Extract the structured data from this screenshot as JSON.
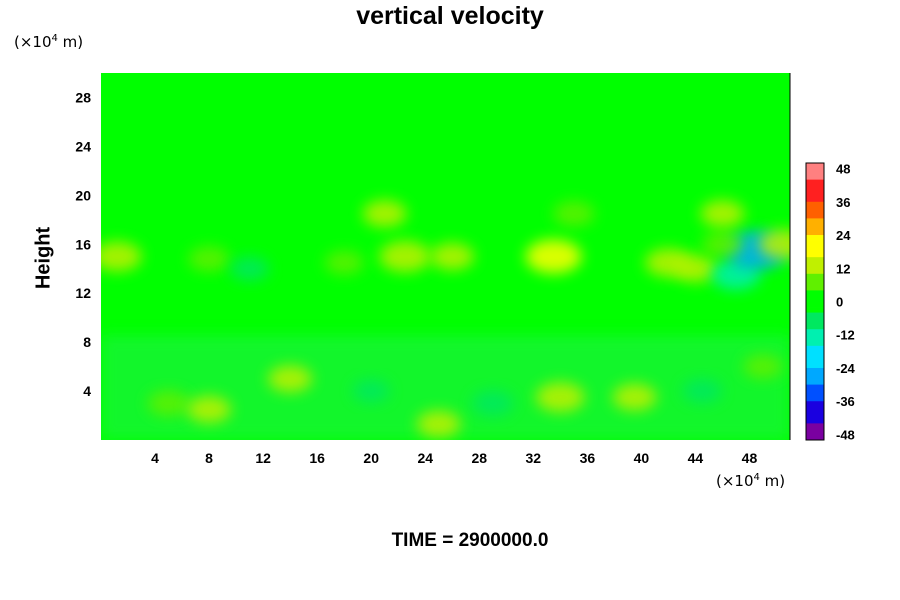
{
  "chart_data": {
    "type": "heatmap",
    "title": "vertical velocity",
    "ylabel": "Height",
    "xlabel": "",
    "y_unit": {
      "prefix": "(×10",
      "exp": "4",
      "suffix": " m)"
    },
    "x_unit": {
      "prefix": "(×10",
      "exp": "4",
      "suffix": " m)"
    },
    "xlim": [
      0,
      51
    ],
    "ylim": [
      0,
      30
    ],
    "x_ticks": [
      "4",
      "8",
      "12",
      "16",
      "20",
      "24",
      "28",
      "32",
      "36",
      "40",
      "44",
      "48"
    ],
    "y_ticks": [
      "4",
      "8",
      "12",
      "16",
      "20",
      "24",
      "28"
    ],
    "colorbar": {
      "range": [
        -50,
        50
      ],
      "ticks": [
        "48",
        "36",
        "24",
        "12",
        "0",
        "-12",
        "-24",
        "-36",
        "-48"
      ],
      "colors": [
        "#7a00a0",
        "#1a00e0",
        "#0050ff",
        "#00a8ff",
        "#00e0ff",
        "#00f0b0",
        "#00e860",
        "#00ff00",
        "#60f000",
        "#c0f000",
        "#ffff00",
        "#ffb000",
        "#ff6000",
        "#ff2020",
        "#ff8080"
      ]
    },
    "background_value": 0,
    "features": [
      {
        "x": 1.2,
        "y": 15,
        "v": 14
      },
      {
        "x": 8,
        "y": 14.8,
        "v": 8
      },
      {
        "x": 11,
        "y": 14,
        "v": -6
      },
      {
        "x": 18,
        "y": 14.5,
        "v": 6
      },
      {
        "x": 22.5,
        "y": 15,
        "v": 16
      },
      {
        "x": 26,
        "y": 15,
        "v": 10
      },
      {
        "x": 33.5,
        "y": 15,
        "v": 20
      },
      {
        "x": 42,
        "y": 14.5,
        "v": 12
      },
      {
        "x": 44,
        "y": 14,
        "v": 10
      },
      {
        "x": 47,
        "y": 13.5,
        "v": -14
      },
      {
        "x": 48.5,
        "y": 15.5,
        "v": -26
      },
      {
        "x": 46,
        "y": 16,
        "v": 8
      },
      {
        "x": 21,
        "y": 18.5,
        "v": 10
      },
      {
        "x": 35,
        "y": 18.5,
        "v": 8
      },
      {
        "x": 46,
        "y": 18.5,
        "v": 10
      },
      {
        "x": 50.5,
        "y": 16,
        "v": 14
      },
      {
        "x": 5,
        "y": 3,
        "v": 8
      },
      {
        "x": 8,
        "y": 2.5,
        "v": 10
      },
      {
        "x": 14,
        "y": 5,
        "v": 10
      },
      {
        "x": 20,
        "y": 4,
        "v": -4
      },
      {
        "x": 25,
        "y": 1.3,
        "v": 10
      },
      {
        "x": 29,
        "y": 3,
        "v": -8
      },
      {
        "x": 34,
        "y": 3.5,
        "v": 14
      },
      {
        "x": 39.5,
        "y": 3.5,
        "v": 10
      },
      {
        "x": 44.5,
        "y": 4,
        "v": -6
      },
      {
        "x": 49,
        "y": 6,
        "v": 6
      }
    ]
  },
  "footer": {
    "time_label": "TIME = 2900000.0"
  }
}
